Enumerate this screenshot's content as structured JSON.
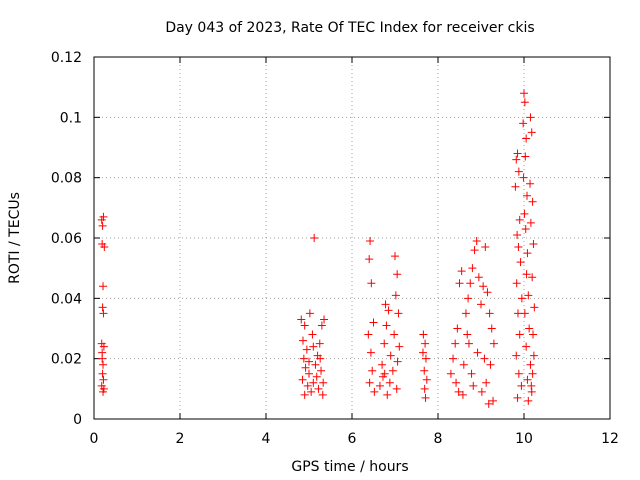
{
  "chart_data": {
    "type": "scatter",
    "title": "Day 043 of 2023, Rate Of TEC Index for receiver ckis",
    "xlabel": "GPS time / hours",
    "ylabel": "ROTI / TECUs",
    "xlim": [
      0,
      12
    ],
    "ylim": [
      0,
      0.12
    ],
    "x_ticks": [
      0,
      2,
      4,
      6,
      8,
      10,
      12
    ],
    "x_tick_labels": [
      "0",
      "2",
      "4",
      "6",
      "8",
      "10",
      "12"
    ],
    "y_ticks": [
      0,
      0.02,
      0.04,
      0.06,
      0.08,
      0.1,
      0.12
    ],
    "y_tick_labels": [
      "0",
      "0.02",
      "0.04",
      "0.06",
      "0.08",
      "0.1",
      "0.12"
    ],
    "grid": true,
    "legend": "none",
    "marker": "plus",
    "color": "#ff0000",
    "series": [
      {
        "points": [
          [
            0.18,
            0.066
          ],
          [
            0.2,
            0.064
          ],
          [
            0.22,
            0.067
          ],
          [
            0.19,
            0.058
          ],
          [
            0.24,
            0.057
          ],
          [
            0.21,
            0.044
          ],
          [
            0.2,
            0.037
          ],
          [
            0.22,
            0.035
          ],
          [
            0.18,
            0.025
          ],
          [
            0.23,
            0.024
          ],
          [
            0.19,
            0.02
          ],
          [
            0.21,
            0.018
          ],
          [
            0.2,
            0.015
          ],
          [
            0.22,
            0.013
          ],
          [
            0.18,
            0.011
          ],
          [
            0.21,
            0.009
          ],
          [
            0.23,
            0.01
          ],
          [
            0.19,
            0.022
          ],
          [
            4.82,
            0.033
          ],
          [
            4.9,
            0.031
          ],
          [
            4.86,
            0.026
          ],
          [
            4.95,
            0.023
          ],
          [
            4.88,
            0.02
          ],
          [
            4.92,
            0.017
          ],
          [
            5.0,
            0.015
          ],
          [
            4.85,
            0.013
          ],
          [
            4.97,
            0.011
          ],
          [
            5.05,
            0.009
          ],
          [
            5.1,
            0.012
          ],
          [
            5.15,
            0.018
          ],
          [
            5.2,
            0.021
          ],
          [
            5.02,
            0.035
          ],
          [
            5.08,
            0.028
          ],
          [
            5.25,
            0.025
          ],
          [
            5.3,
            0.031
          ],
          [
            5.35,
            0.033
          ],
          [
            5.28,
            0.016
          ],
          [
            5.22,
            0.01
          ],
          [
            5.12,
            0.06
          ],
          [
            5.18,
            0.014
          ],
          [
            5.32,
            0.008
          ],
          [
            4.9,
            0.008
          ],
          [
            5.0,
            0.019
          ],
          [
            5.1,
            0.024
          ],
          [
            5.26,
            0.02
          ],
          [
            5.33,
            0.012
          ],
          [
            6.42,
            0.059
          ],
          [
            6.4,
            0.053
          ],
          [
            6.45,
            0.045
          ],
          [
            6.5,
            0.032
          ],
          [
            6.38,
            0.028
          ],
          [
            6.44,
            0.022
          ],
          [
            6.47,
            0.016
          ],
          [
            6.41,
            0.012
          ],
          [
            6.52,
            0.009
          ],
          [
            6.65,
            0.011
          ],
          [
            6.7,
            0.018
          ],
          [
            6.75,
            0.025
          ],
          [
            6.8,
            0.031
          ],
          [
            6.85,
            0.036
          ],
          [
            6.78,
            0.038
          ],
          [
            6.72,
            0.014
          ],
          [
            6.9,
            0.021
          ],
          [
            6.95,
            0.016
          ],
          [
            7.0,
            0.054
          ],
          [
            7.05,
            0.048
          ],
          [
            7.02,
            0.041
          ],
          [
            7.08,
            0.035
          ],
          [
            6.98,
            0.028
          ],
          [
            7.1,
            0.024
          ],
          [
            7.06,
            0.019
          ],
          [
            6.88,
            0.012
          ],
          [
            6.82,
            0.008
          ],
          [
            7.04,
            0.01
          ],
          [
            6.76,
            0.015
          ],
          [
            7.66,
            0.028
          ],
          [
            7.7,
            0.025
          ],
          [
            7.72,
            0.02
          ],
          [
            7.68,
            0.016
          ],
          [
            7.74,
            0.013
          ],
          [
            7.69,
            0.01
          ],
          [
            7.71,
            0.007
          ],
          [
            7.65,
            0.022
          ],
          [
            8.3,
            0.015
          ],
          [
            8.35,
            0.02
          ],
          [
            8.4,
            0.025
          ],
          [
            8.45,
            0.03
          ],
          [
            8.5,
            0.045
          ],
          [
            8.55,
            0.049
          ],
          [
            8.42,
            0.012
          ],
          [
            8.48,
            0.009
          ],
          [
            8.6,
            0.018
          ],
          [
            8.65,
            0.035
          ],
          [
            8.7,
            0.04
          ],
          [
            8.75,
            0.045
          ],
          [
            8.8,
            0.05
          ],
          [
            8.85,
            0.056
          ],
          [
            8.9,
            0.059
          ],
          [
            8.72,
            0.025
          ],
          [
            8.78,
            0.015
          ],
          [
            8.82,
            0.011
          ],
          [
            8.95,
            0.047
          ],
          [
            9.0,
            0.038
          ],
          [
            9.05,
            0.044
          ],
          [
            9.1,
            0.057
          ],
          [
            9.15,
            0.042
          ],
          [
            9.2,
            0.035
          ],
          [
            9.25,
            0.03
          ],
          [
            9.3,
            0.025
          ],
          [
            9.22,
            0.018
          ],
          [
            9.12,
            0.012
          ],
          [
            9.02,
            0.009
          ],
          [
            9.28,
            0.006
          ],
          [
            9.18,
            0.005
          ],
          [
            8.92,
            0.022
          ],
          [
            8.68,
            0.028
          ],
          [
            8.58,
            0.008
          ],
          [
            9.08,
            0.02
          ],
          [
            9.82,
            0.086
          ],
          [
            9.85,
            0.088
          ],
          [
            9.88,
            0.082
          ],
          [
            9.8,
            0.077
          ],
          [
            9.9,
            0.066
          ],
          [
            9.84,
            0.061
          ],
          [
            9.87,
            0.057
          ],
          [
            9.92,
            0.052
          ],
          [
            9.83,
            0.045
          ],
          [
            9.95,
            0.04
          ],
          [
            9.86,
            0.035
          ],
          [
            9.9,
            0.028
          ],
          [
            9.82,
            0.021
          ],
          [
            9.88,
            0.015
          ],
          [
            9.94,
            0.011
          ],
          [
            9.85,
            0.007
          ],
          [
            10.0,
            0.108
          ],
          [
            10.02,
            0.105
          ],
          [
            9.98,
            0.098
          ],
          [
            10.05,
            0.093
          ],
          [
            10.03,
            0.087
          ],
          [
            9.99,
            0.08
          ],
          [
            10.07,
            0.074
          ],
          [
            10.01,
            0.068
          ],
          [
            10.04,
            0.063
          ],
          [
            10.08,
            0.055
          ],
          [
            10.06,
            0.048
          ],
          [
            10.1,
            0.041
          ],
          [
            10.02,
            0.035
          ],
          [
            10.12,
            0.03
          ],
          [
            10.05,
            0.024
          ],
          [
            10.15,
            0.018
          ],
          [
            10.08,
            0.013
          ],
          [
            10.18,
            0.009
          ],
          [
            10.1,
            0.006
          ],
          [
            10.15,
            0.1
          ],
          [
            10.18,
            0.095
          ],
          [
            10.14,
            0.078
          ],
          [
            10.2,
            0.072
          ],
          [
            10.16,
            0.065
          ],
          [
            10.22,
            0.058
          ],
          [
            10.19,
            0.047
          ],
          [
            10.24,
            0.037
          ],
          [
            10.21,
            0.028
          ],
          [
            10.23,
            0.021
          ],
          [
            10.2,
            0.015
          ],
          [
            10.17,
            0.011
          ]
        ]
      }
    ]
  }
}
